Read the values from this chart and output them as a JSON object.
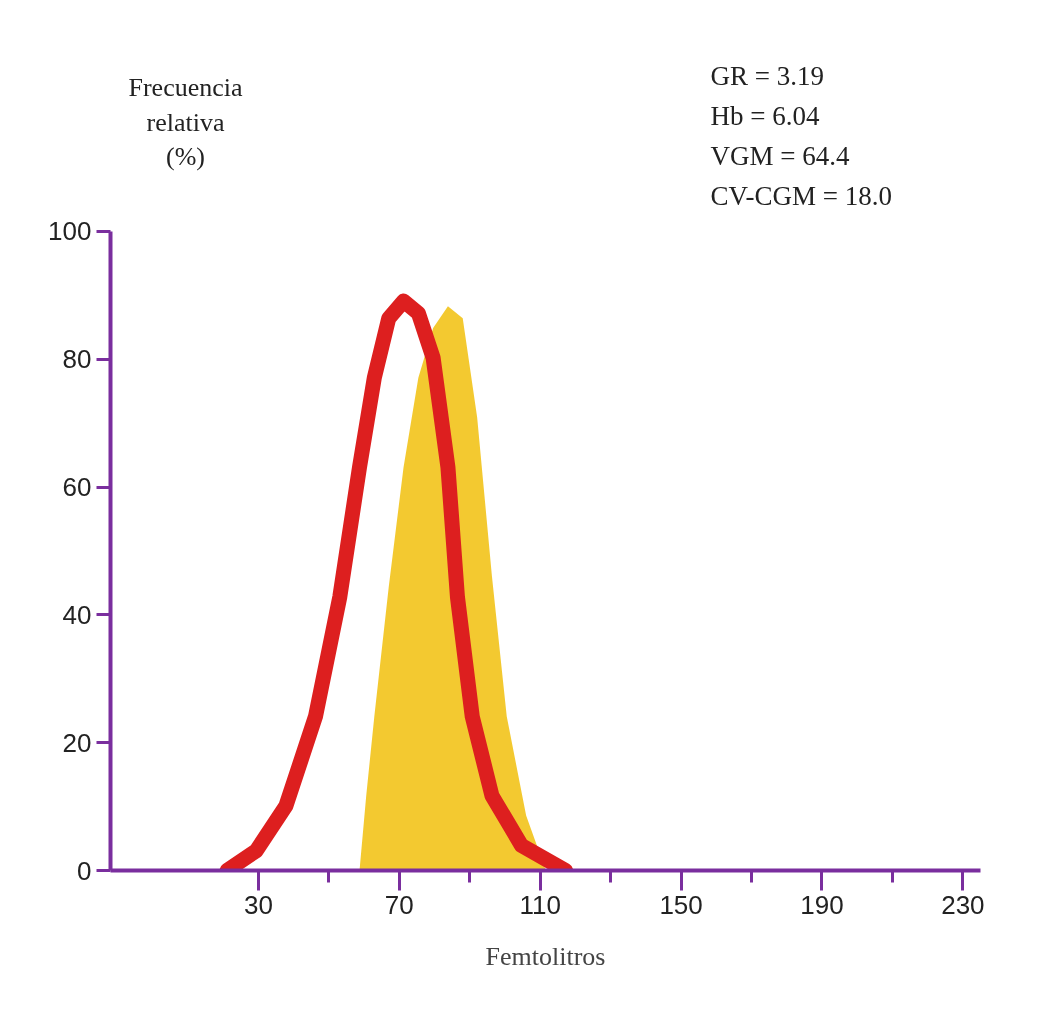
{
  "chart_data": {
    "type": "line",
    "xlabel": "Femtolitros",
    "ylabel": "Frecuencia relativa (%)",
    "xlim": [
      -12,
      235
    ],
    "ylim": [
      0,
      100
    ],
    "xticks": [
      30,
      {
        "value": 50,
        "label": null
      },
      70,
      {
        "value": 90,
        "label": null
      },
      110,
      {
        "value": 130,
        "label": null
      },
      150,
      {
        "value": 170,
        "label": null
      },
      190,
      {
        "value": 210,
        "label": null
      },
      230
    ],
    "yticks": [
      0,
      20,
      40,
      60,
      80,
      100
    ],
    "grid": false,
    "line_style": "solid",
    "annotations": [
      "GR = 3.19",
      "Hb = 6.04",
      "VGM = 64.4",
      "CV-CGM = 18.0"
    ],
    "series": [
      {
        "type": "area",
        "color": "#f2c31a",
        "x": [
          58.7,
          60.6,
          62.9,
          67.0,
          71.2,
          75.4,
          79.6,
          83.8,
          88.0,
          92.1,
          96.3,
          100.5,
          106.0,
          111.6
        ],
        "values": [
          0,
          11.7,
          24.1,
          44.4,
          63.1,
          77.1,
          84.9,
          88.3,
          86.4,
          70.9,
          46.0,
          24.1,
          8.6,
          0
        ]
      },
      {
        "color": "#dd1f1f",
        "x": [
          21.1,
          29.4,
          37.8,
          46.2,
          53.1,
          58.7,
          62.9,
          67.0,
          71.2,
          75.4,
          79.6,
          83.8,
          86.5,
          90.7,
          96.3,
          104.7,
          117.2
        ],
        "values": [
          0,
          3.1,
          10.1,
          24.1,
          42.8,
          63.1,
          77.1,
          86.4,
          89.1,
          87.2,
          80.2,
          63.1,
          42.8,
          24.1,
          11.7,
          3.9,
          0
        ]
      }
    ]
  }
}
